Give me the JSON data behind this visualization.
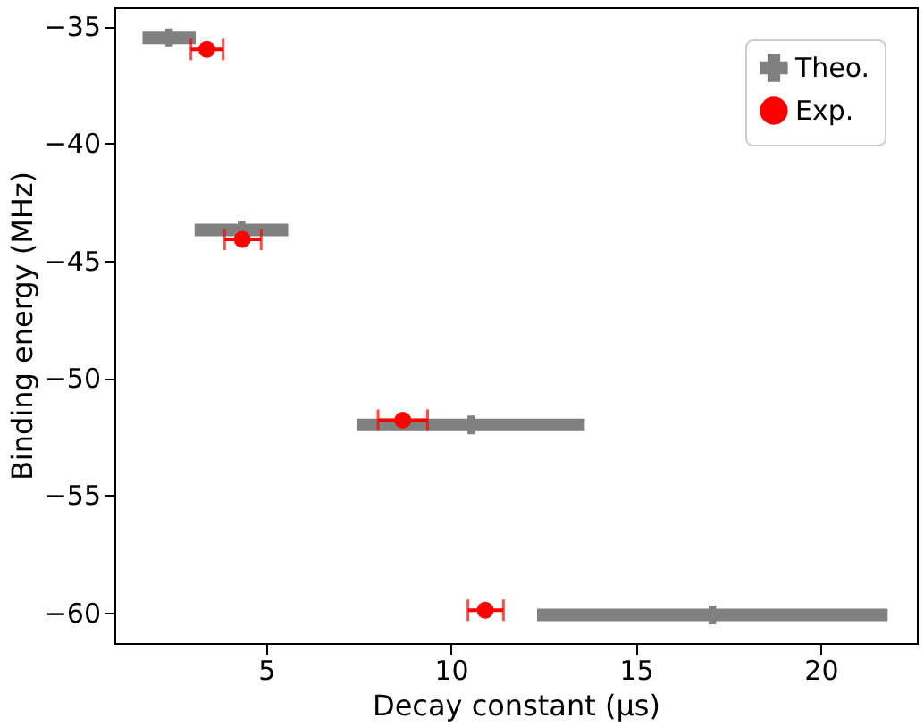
{
  "chart_data": {
    "type": "scatter",
    "xlabel": "Decay constant (μs)",
    "ylabel": "Binding energy (MHz)",
    "xlim": [
      0.9,
      22.6
    ],
    "ylim": [
      -61.3,
      -34.2
    ],
    "xticks": [
      5,
      10,
      15,
      20
    ],
    "yticks": [
      -35,
      -40,
      -45,
      -50,
      -55,
      -60
    ],
    "grid": false,
    "legend": "top right",
    "series": [
      {
        "name": "Theo.",
        "color": "#808080",
        "marker": "cross",
        "x": [
          2.38,
          4.34,
          10.55,
          17.07
        ],
        "values": [
          -35.5,
          -43.7,
          -52.0,
          -60.1
        ],
        "xerrors": [
          [
            1.66,
            3.1
          ],
          [
            3.07,
            5.6
          ],
          [
            7.47,
            13.62
          ],
          [
            12.33,
            21.81
          ]
        ]
      },
      {
        "name": "Exp.",
        "color": "#ff0000",
        "marker": "circle",
        "x": [
          3.4,
          4.36,
          8.7,
          10.93
        ],
        "values": [
          -36.0,
          -44.1,
          -51.8,
          -59.9
        ],
        "xerrors": [
          [
            2.97,
            3.84
          ],
          [
            3.88,
            4.87
          ],
          [
            8.03,
            9.37
          ],
          [
            10.46,
            11.42
          ]
        ]
      }
    ]
  }
}
